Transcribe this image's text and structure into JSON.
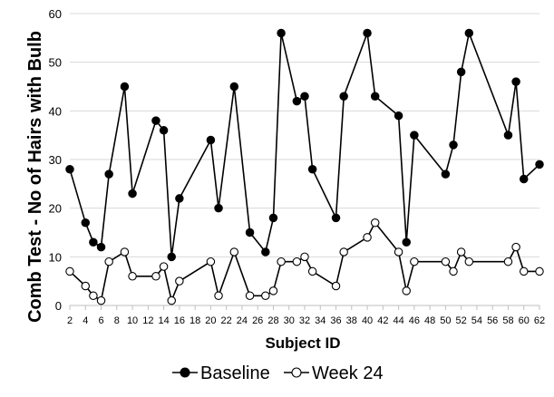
{
  "chart_data": {
    "type": "line",
    "title": "",
    "xlabel": "Subject ID",
    "ylabel": "Comb Test - No of Hairs with Bulb",
    "xlim": [
      2,
      62
    ],
    "ylim": [
      0,
      60
    ],
    "x_ticks": [
      2,
      4,
      6,
      8,
      10,
      12,
      14,
      16,
      18,
      20,
      22,
      24,
      26,
      28,
      30,
      32,
      34,
      36,
      38,
      40,
      42,
      44,
      46,
      48,
      50,
      52,
      54,
      56,
      58,
      60,
      62
    ],
    "y_ticks": [
      0,
      10,
      20,
      30,
      40,
      50,
      60
    ],
    "grid": "horizontal",
    "legend": "bottom",
    "x": [
      2,
      4,
      5,
      6,
      7,
      9,
      10,
      13,
      14,
      15,
      16,
      20,
      21,
      23,
      25,
      27,
      28,
      29,
      31,
      32,
      33,
      36,
      37,
      40,
      41,
      44,
      45,
      46,
      50,
      51,
      52,
      53,
      58,
      59,
      60,
      62
    ],
    "series": [
      {
        "name": "Baseline",
        "marker": "filled-circle",
        "color": "#000000",
        "values": [
          28,
          17,
          13,
          12,
          27,
          45,
          23,
          38,
          36,
          10,
          22,
          34,
          20,
          45,
          15,
          11,
          18,
          56,
          42,
          43,
          28,
          18,
          43,
          56,
          43,
          39,
          13,
          35,
          27,
          33,
          48,
          56,
          35,
          46,
          26,
          29
        ]
      },
      {
        "name": "Week 24",
        "marker": "open-circle",
        "color": "#000000",
        "values": [
          7,
          4,
          2,
          1,
          9,
          11,
          6,
          6,
          8,
          1,
          5,
          9,
          2,
          11,
          2,
          2,
          3,
          9,
          9,
          10,
          7,
          4,
          11,
          14,
          17,
          11,
          3,
          9,
          9,
          7,
          11,
          9,
          9,
          12,
          7,
          7
        ]
      }
    ]
  }
}
